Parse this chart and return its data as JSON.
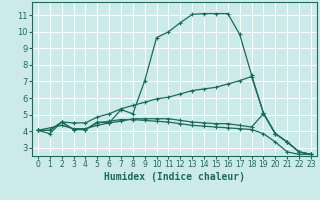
{
  "xlabel": "Humidex (Indice chaleur)",
  "bg_color": "#cceaea",
  "grid_color": "#ffffff",
  "line_color": "#1a6b5a",
  "xlim": [
    -0.5,
    23.5
  ],
  "ylim": [
    2.5,
    11.8
  ],
  "xticks": [
    0,
    1,
    2,
    3,
    4,
    5,
    6,
    7,
    8,
    9,
    10,
    11,
    12,
    13,
    14,
    15,
    16,
    17,
    18,
    19,
    20,
    21,
    22,
    23
  ],
  "yticks": [
    3,
    4,
    5,
    6,
    7,
    8,
    9,
    10,
    11
  ],
  "line1_x": [
    0,
    1,
    2,
    3,
    4,
    5,
    6,
    7,
    8,
    9,
    10,
    11,
    12,
    13,
    14,
    15,
    16,
    17,
    18,
    19,
    20,
    21,
    22,
    23
  ],
  "line1_y": [
    4.05,
    3.85,
    4.55,
    4.1,
    4.1,
    4.55,
    4.5,
    5.3,
    5.05,
    7.05,
    9.65,
    10.0,
    10.55,
    11.05,
    11.1,
    11.1,
    11.1,
    9.85,
    7.4,
    5.1,
    3.85,
    3.35,
    2.75,
    2.6
  ],
  "line2_x": [
    0,
    1,
    2,
    3,
    4,
    5,
    6,
    7,
    8,
    9,
    10,
    11,
    12,
    13,
    14,
    15,
    16,
    17,
    18,
    19,
    20,
    21,
    22,
    23
  ],
  "line2_y": [
    4.05,
    4.05,
    4.55,
    4.5,
    4.5,
    4.85,
    5.05,
    5.35,
    5.55,
    5.75,
    5.95,
    6.05,
    6.25,
    6.45,
    6.55,
    6.65,
    6.85,
    7.05,
    7.3,
    5.1,
    3.85,
    3.35,
    2.75,
    2.6
  ],
  "line3_x": [
    0,
    2,
    3,
    4,
    5,
    6,
    7,
    8,
    9,
    10,
    11,
    12,
    13,
    14,
    15,
    16,
    17,
    18,
    19,
    20,
    21,
    22,
    23
  ],
  "line3_y": [
    4.05,
    4.35,
    4.15,
    4.15,
    4.35,
    4.5,
    4.6,
    4.75,
    4.75,
    4.75,
    4.75,
    4.65,
    4.55,
    4.5,
    4.45,
    4.45,
    4.35,
    4.25,
    5.05,
    3.85,
    3.35,
    2.75,
    2.6
  ],
  "line4_x": [
    0,
    1,
    2,
    3,
    4,
    5,
    6,
    7,
    8,
    9,
    10,
    11,
    12,
    13,
    14,
    15,
    16,
    17,
    18,
    19,
    20,
    21,
    22,
    23
  ],
  "line4_y": [
    4.05,
    4.05,
    4.55,
    4.1,
    4.1,
    4.5,
    4.6,
    4.7,
    4.7,
    4.65,
    4.6,
    4.55,
    4.45,
    4.35,
    4.3,
    4.25,
    4.2,
    4.15,
    4.1,
    3.85,
    3.35,
    2.75,
    2.6,
    2.6
  ]
}
